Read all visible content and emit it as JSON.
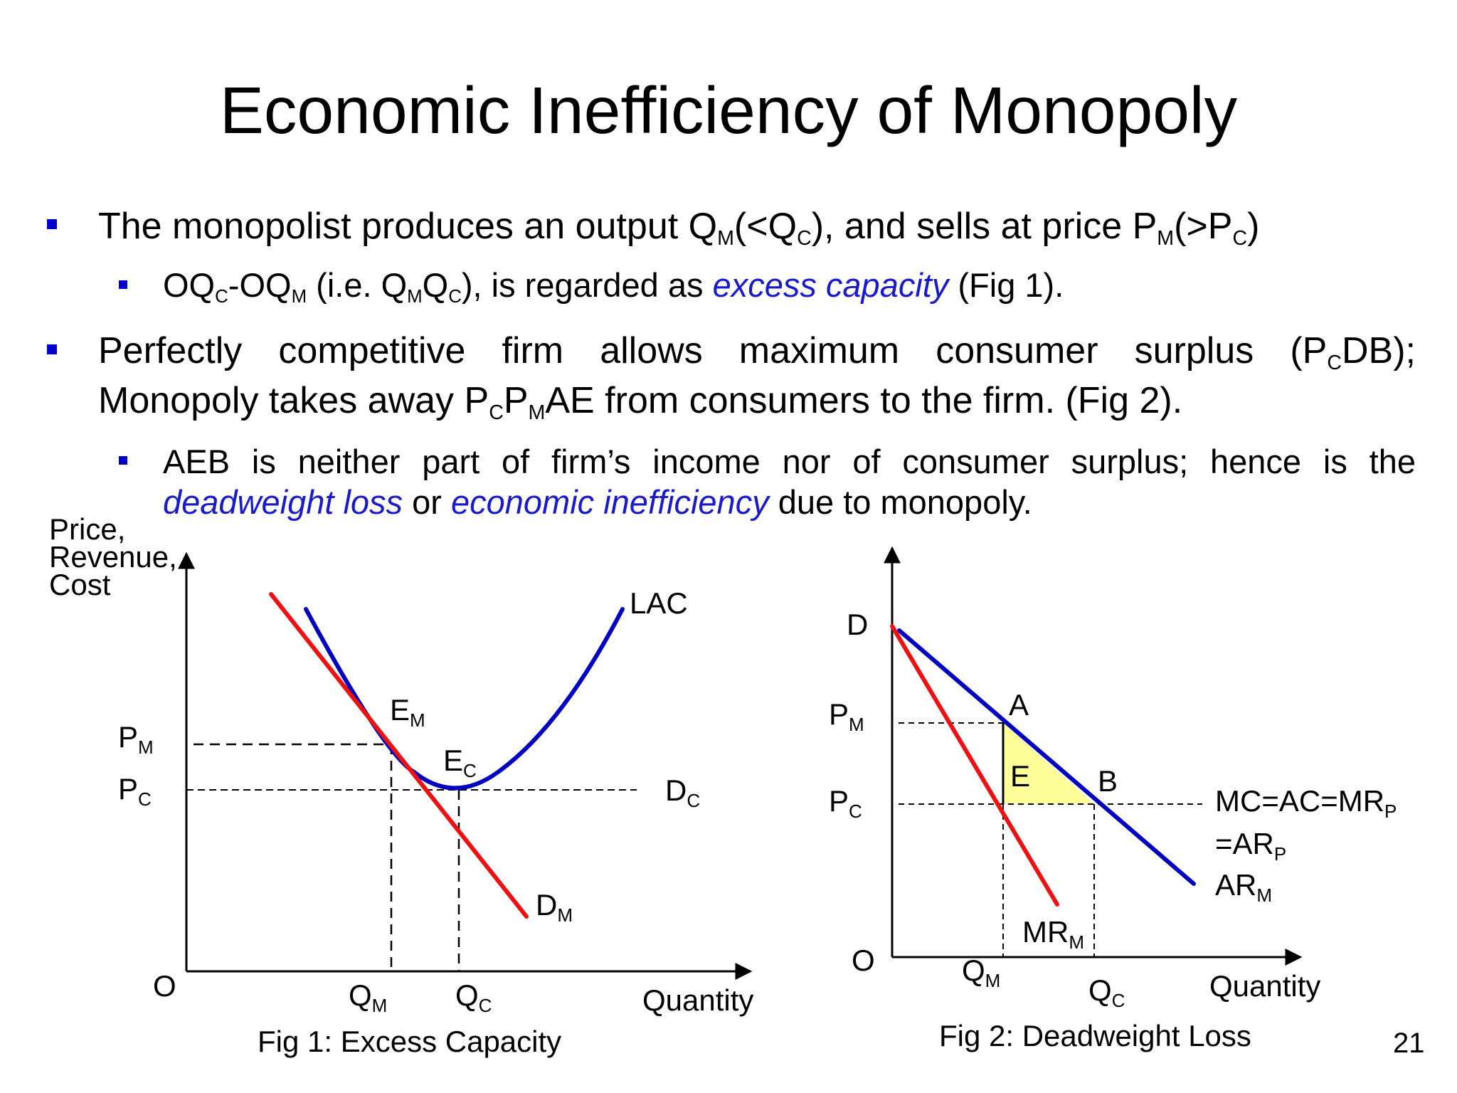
{
  "title": "Economic Inefficiency of Monopoly",
  "bullets": {
    "b1": {
      "t1": "The monopolist produces an output Q",
      "s1": "M",
      "t2": "(<Q",
      "s2": "C",
      "t3": "), and sells at price P",
      "s3": "M",
      "t4": "(>P",
      "s4": "C",
      "t5": ")"
    },
    "b1a": {
      "t1": "OQ",
      "s1": "C",
      "t2": "-OQ",
      "s2": "M",
      "t3": " (i.e. Q",
      "s3": "M",
      "t4": "Q",
      "s4": "C",
      "t5": "), is regarded as ",
      "em": "excess capacity",
      "t6": " (Fig 1)."
    },
    "b2": {
      "line1_t1": "Perfectly competitive firm allows maximum consumer surplus (P",
      "line1_s1": "C",
      "line1_t2": "DB);",
      "line2_t1": "Monopoly takes away P",
      "line2_s1": "C",
      "line2_t2": "P",
      "line2_s2": "M",
      "line2_t3": "AE from consumers to the firm. (Fig 2)."
    },
    "b2a": {
      "line1": "AEB  is neither part of firm’s income nor of consumer surplus; hence is the",
      "em1": "deadweight loss",
      "t1": " or ",
      "em2": "economic inefficiency",
      "t2": " due to monopoly."
    }
  },
  "fig1": {
    "ylabel": [
      "Price,",
      "Revenue,",
      "Cost"
    ],
    "origin": "O",
    "xlabel": "Quantity",
    "curves": {
      "lac": "LAC",
      "dc": "D",
      "dc_sub": "C",
      "dm": "D",
      "dm_sub": "M"
    },
    "points": {
      "em": "E",
      "em_sub": "M",
      "ec": "E",
      "ec_sub": "C"
    },
    "yticks": [
      {
        "t": "P",
        "s": "M"
      },
      {
        "t": "P",
        "s": "C"
      }
    ],
    "xticks": [
      {
        "t": "Q",
        "s": "M"
      },
      {
        "t": "Q",
        "s": "C"
      }
    ],
    "caption": "Fig 1: Excess Capacity",
    "colors": {
      "demand": "#ee1111",
      "cost": "#0000c0"
    }
  },
  "fig2": {
    "origin": "O",
    "xlabel": "Quantity",
    "d": "D",
    "yticks": [
      {
        "t": "P",
        "s": "M"
      },
      {
        "t": "P",
        "s": "C"
      }
    ],
    "xticks": [
      {
        "t": "Q",
        "s": "M"
      },
      {
        "t": "Q",
        "s": "C"
      }
    ],
    "points": {
      "a": "A",
      "b": "B",
      "e": "E"
    },
    "mr": {
      "t": "MR",
      "s": "M"
    },
    "mc": {
      "l1": "MC=AC=MR",
      "l1_sub": "P",
      "l2": "=AR",
      "l2_sub": "P",
      "l3": "AR",
      "l3_sub": "M"
    },
    "caption": "Fig 2: Deadweight Loss",
    "colors": {
      "ar": "#0000c0",
      "mr": "#ee1111",
      "deadweight": "#ffff99"
    }
  },
  "slide_number": "21"
}
